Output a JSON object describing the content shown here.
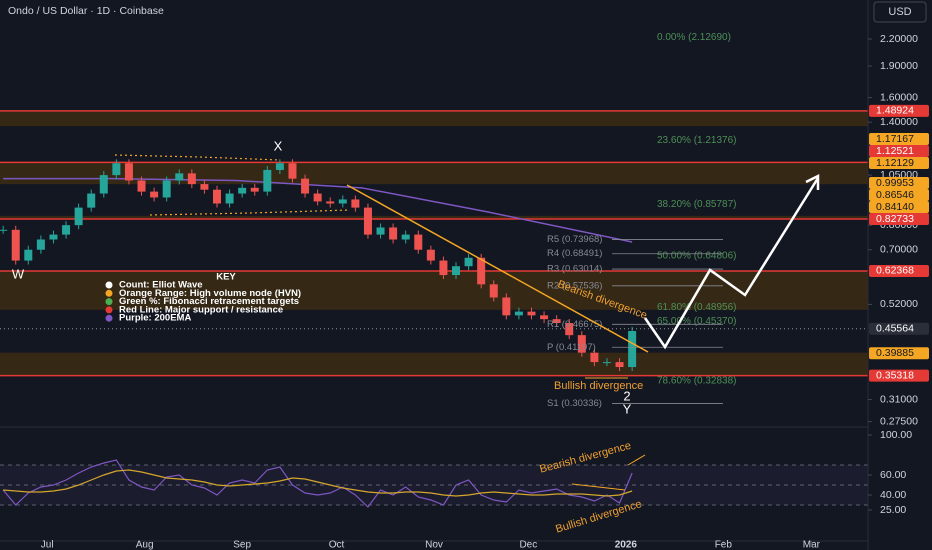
{
  "header": {
    "title": "Ondo / US Dollar · 1D · Coinbase",
    "currency": "USD"
  },
  "chart_data": {
    "type": "candlestick",
    "log_scale": true,
    "colors": {
      "up": "#26a69a",
      "down": "#ef5350",
      "ema": "#7e57c2",
      "fib": "#4e8f57",
      "pivot": "#868993",
      "zone": "#3a2a14",
      "support": "#e53935"
    },
    "x": [
      -14,
      -10,
      -6,
      -2,
      2,
      6,
      10,
      14,
      18,
      22,
      26,
      30,
      34,
      38,
      42,
      46,
      50,
      54,
      58,
      62,
      66,
      70,
      74,
      78,
      82,
      86,
      90,
      94,
      98,
      102,
      106,
      110,
      114,
      118,
      122,
      126,
      130,
      134,
      138,
      142,
      146,
      150,
      154,
      158,
      162,
      166,
      170,
      174,
      178,
      182,
      186
    ],
    "values": [
      0.78,
      0.66,
      0.7,
      0.74,
      0.76,
      0.8,
      0.88,
      0.95,
      1.05,
      1.12,
      1.02,
      0.96,
      0.93,
      1.02,
      1.06,
      1.0,
      0.97,
      0.9,
      0.95,
      0.98,
      0.96,
      1.08,
      1.12,
      1.03,
      0.95,
      0.91,
      0.9,
      0.92,
      0.88,
      0.76,
      0.79,
      0.74,
      0.76,
      0.7,
      0.66,
      0.61,
      0.64,
      0.67,
      0.58,
      0.54,
      0.49,
      0.5,
      0.49,
      0.48,
      0.47,
      0.44,
      0.4,
      0.38,
      0.38,
      0.37,
      0.45
    ],
    "ema": {
      "x": [
        -14,
        20,
        60,
        100,
        140,
        186
      ],
      "values": [
        1.03,
        1.03,
        1.02,
        0.98,
        0.86,
        0.73
      ]
    },
    "xlim": [
      -15,
      261
    ],
    "xticks": [
      {
        "value": 0,
        "label": "Jul"
      },
      {
        "value": 31,
        "label": "Aug"
      },
      {
        "value": 62,
        "label": "Sep"
      },
      {
        "value": 92,
        "label": "Oct"
      },
      {
        "value": 123,
        "label": "Nov"
      },
      {
        "value": 153,
        "label": "Dec"
      },
      {
        "value": 184,
        "label": "2026"
      },
      {
        "value": 215,
        "label": "Feb"
      },
      {
        "value": 243,
        "label": "Mar"
      }
    ],
    "ylim": [
      0.27,
      2.72
    ],
    "yticks": [
      {
        "value": 2.2,
        "label": "2.20000"
      },
      {
        "value": 1.9,
        "label": "1.90000"
      },
      {
        "value": 1.6,
        "label": "1.60000"
      },
      {
        "value": 1.4,
        "label": "1.40000"
      },
      {
        "value": 1.05,
        "label": "1.05000"
      },
      {
        "value": 0.8,
        "label": "0.80000"
      },
      {
        "value": 0.7,
        "label": "0.70000"
      },
      {
        "value": 0.52,
        "label": "0.52000"
      },
      {
        "value": 0.31,
        "label": "0.31000"
      },
      {
        "value": 0.275,
        "label": "0.27500"
      }
    ],
    "zones": [
      [
        1.37,
        1.48924
      ],
      [
        0.99953,
        1.12521
      ],
      [
        0.82733,
        0.8414
      ],
      [
        0.505,
        0.62368
      ],
      [
        0.35318,
        0.4
      ]
    ],
    "price_labels": [
      {
        "value": 1.48924,
        "label": "1.48924",
        "color": "#e53935"
      },
      {
        "value": 1.17167,
        "label": "1.17167",
        "color": "#f5a623"
      },
      {
        "value": 1.12521,
        "label": "1.12521",
        "color": "#e53935"
      },
      {
        "value": 1.12129,
        "label": "1.12129",
        "color": "#f5a623"
      },
      {
        "value": 0.99953,
        "label": "0.99953",
        "color": "#f5a623"
      },
      {
        "value": 0.86546,
        "label": "0.86546",
        "color": "#f5a623"
      },
      {
        "value": 0.8414,
        "label": "0.84140",
        "color": "#f5a623"
      },
      {
        "value": 0.82733,
        "label": "0.82733",
        "color": "#e53935"
      },
      {
        "value": 0.62368,
        "label": "0.62368",
        "color": "#e53935"
      },
      {
        "value": 0.45564,
        "label": "0.45564",
        "color": "#2a2e39"
      },
      {
        "value": 0.39885,
        "label": "0.39885",
        "color": "#f5a623"
      },
      {
        "value": 0.35318,
        "label": "0.35318",
        "color": "#e53935"
      }
    ],
    "fib": [
      {
        "value": 2.1269,
        "label": "0.00% (2.12690)"
      },
      {
        "value": 1.21376,
        "label": "23.60% (1.21376)"
      },
      {
        "value": 0.85787,
        "label": "38.20% (0.85787)"
      },
      {
        "value": 0.64806,
        "label": "50.00% (0.64806)"
      },
      {
        "value": 0.48956,
        "label": "61.80% (0.48956)"
      },
      {
        "value": 0.4537,
        "label": "65.00% (0.45370)"
      },
      {
        "value": 0.32838,
        "label": "78.60% (0.32838)"
      }
    ],
    "pivots": [
      {
        "value": 0.73968,
        "label": "R5 (0.73968)"
      },
      {
        "value": 0.68491,
        "label": "R4 (0.68491)"
      },
      {
        "value": 0.63014,
        "label": "R3 (0.63014)"
      },
      {
        "value": 0.57536,
        "label": "R2 (0.57536)"
      },
      {
        "value": 0.46675,
        "label": "R1 (0.46675)"
      },
      {
        "value": 0.41197,
        "label": "P (0.41197)"
      },
      {
        "value": 0.30336,
        "label": "S1 (0.30336)"
      }
    ],
    "annotations": {
      "w": "W",
      "x": "X",
      "two": "2",
      "y": "Y",
      "bearish": "Bearish divergence",
      "bullish": "Bullish divergence"
    },
    "key": {
      "title": "KEY",
      "items": [
        {
          "text": "Count: Elliot Wave",
          "color": "#ffffff"
        },
        {
          "text": "Orange Range: High volume node (HVN)",
          "color": "#f5a623"
        },
        {
          "text": "Green %: Fibonacci retracement targets",
          "color": "#4caf50"
        },
        {
          "text": "Red Line: Major support / resistance",
          "color": "#e53935"
        },
        {
          "text": "Purple: 200EMA",
          "color": "#7e57c2"
        }
      ]
    }
  },
  "rsi": {
    "values": [
      45,
      30,
      42,
      48,
      50,
      55,
      62,
      68,
      72,
      75,
      55,
      48,
      45,
      58,
      60,
      50,
      47,
      40,
      52,
      55,
      52,
      65,
      68,
      50,
      42,
      40,
      42,
      48,
      40,
      28,
      45,
      40,
      48,
      38,
      35,
      30,
      50,
      55,
      40,
      35,
      33,
      45,
      42,
      44,
      46,
      40,
      38,
      34,
      40,
      32,
      62
    ],
    "ma": [
      45,
      44,
      43,
      43,
      44,
      46,
      50,
      55,
      60,
      64,
      65,
      63,
      60,
      57,
      56,
      55,
      53,
      50,
      49,
      50,
      51,
      52,
      54,
      57,
      56,
      53,
      50,
      47,
      45,
      43,
      42,
      42,
      43,
      43,
      42,
      40,
      39,
      40,
      42,
      43,
      42,
      41,
      40,
      40,
      41,
      41,
      41,
      40,
      39,
      40,
      44
    ],
    "color": "#7e57c2",
    "ma_color": "#d4a72c",
    "ylim": [
      0,
      100
    ],
    "yticks": [
      {
        "value": 100,
        "label": "100.00"
      },
      {
        "value": 60,
        "label": "60.00"
      },
      {
        "value": 40,
        "label": "40.00"
      },
      {
        "value": 25,
        "label": "25.00"
      }
    ],
    "levels": [
      70,
      50,
      30
    ],
    "annotations": {
      "bearish": "Bearish divergence",
      "bullish": "Bullish divergence"
    }
  }
}
